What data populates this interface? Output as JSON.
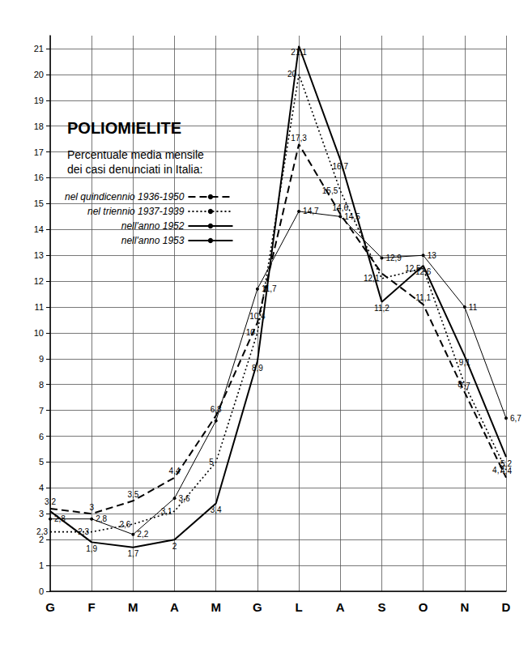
{
  "chart_data": {
    "type": "line",
    "title": "POLIOMIELITE",
    "subtitle": "Percentuale media mensile\ndei casi denunciati in Italia:",
    "categories": [
      "G",
      "F",
      "M",
      "A",
      "M",
      "G",
      "L",
      "A",
      "S",
      "O",
      "N",
      "D"
    ],
    "ylim": [
      0,
      21.5
    ],
    "yticks": [
      0,
      1,
      2,
      3,
      4,
      5,
      6,
      7,
      8,
      9,
      10,
      11,
      12,
      13,
      14,
      15,
      16,
      17,
      18,
      19,
      20,
      21
    ],
    "grid": true,
    "legend": "upper left",
    "data_labels": true,
    "series": [
      {
        "name": "nel quindicennio 1936-1950",
        "color": "#000000",
        "line_style": "dashed",
        "marker": "none",
        "values": [
          3.2,
          3,
          3.5,
          4.4,
          6.8,
          10.4,
          17.3,
          14.6,
          12.3,
          11.1,
          7.7,
          4.4
        ],
        "value_labels": [
          "3,2",
          "3",
          "3,5",
          "4,4",
          "6,8",
          "10,4",
          "17,3",
          "14,6",
          null,
          "11,1",
          "7,7",
          "4,4"
        ]
      },
      {
        "name": "nel triennio 1937-1939",
        "color": "#000000",
        "line_style": "dotted",
        "marker": "none",
        "values": [
          2.3,
          2.3,
          2.6,
          3.1,
          5,
          10,
          20,
          15.5,
          12.1,
          12.5,
          8,
          4.7
        ],
        "value_labels": [
          "2,3",
          "2,3",
          "2,6",
          "3,1",
          "5",
          "10",
          "20",
          "15,5",
          "12,1",
          "12,5",
          "8",
          "4,7"
        ]
      },
      {
        "name": "nell'anno 1952",
        "color": "#000000",
        "line_style": "solid",
        "marker": "circle",
        "values": [
          2.8,
          2.8,
          2.2,
          3.6,
          6.6,
          11.7,
          14.7,
          14.5,
          12.9,
          13,
          11,
          6.7
        ],
        "value_labels": [
          "2,8",
          "2,8",
          "2,2",
          "3,6",
          null,
          "11,7",
          "14,7",
          "14,5",
          "12,9",
          "13",
          "11",
          "6,7"
        ]
      },
      {
        "name": "nell'anno 1953",
        "color": "#000000",
        "line_style": "solid",
        "marker": "none",
        "values": [
          3.1,
          1.9,
          1.7,
          2,
          3.4,
          8.9,
          21.1,
          16.7,
          11.2,
          12.6,
          9.1,
          5.2
        ],
        "value_labels": [
          null,
          "1,9",
          "1,7",
          "2",
          "3,4",
          "8,9",
          "21,1",
          "16,7",
          "11,2",
          "12,6",
          "9,1",
          "5,2"
        ]
      }
    ]
  }
}
